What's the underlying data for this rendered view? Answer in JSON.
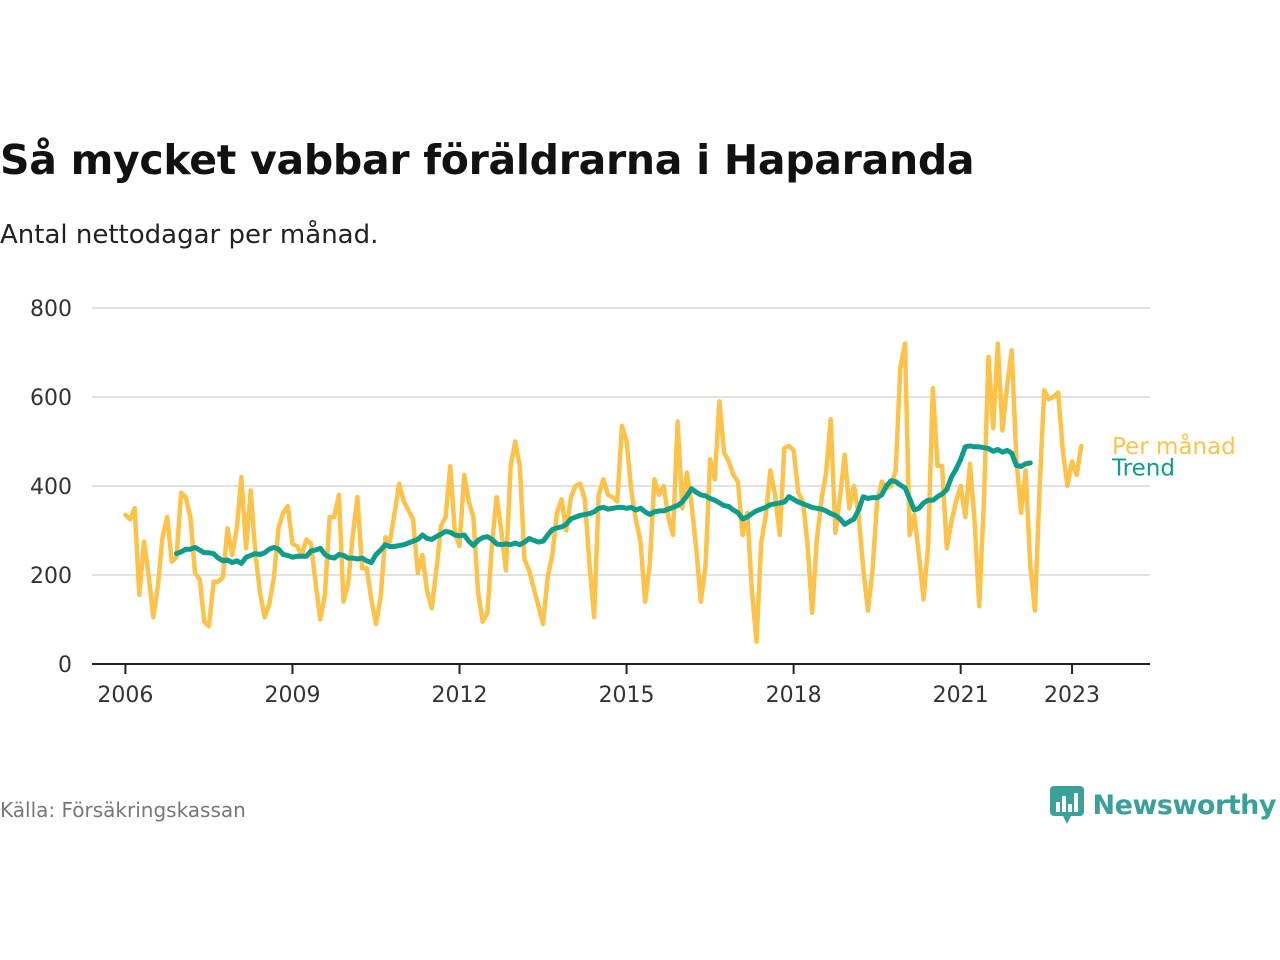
{
  "title": "Så mycket vabbar föräldrarna i Haparanda",
  "subtitle": "Antal nettodagar per månad.",
  "source": "Källa: Försäkringskassan",
  "brand": "Newsworthy",
  "colors": {
    "monthly": "#fdc24a",
    "trend": "#0f9c8a",
    "grid": "#d9d9d9",
    "brand": "#39a09a"
  },
  "chart_data": {
    "type": "line",
    "title": "Så mycket vabbar föräldrarna i Haparanda",
    "subtitle": "Antal nettodagar per månad.",
    "xlim": [
      2005.4,
      2024.4
    ],
    "ylim": [
      0,
      800
    ],
    "xticks": [
      2006,
      2009,
      2012,
      2015,
      2018,
      2021,
      2023
    ],
    "yticks": [
      0,
      200,
      400,
      600,
      800
    ],
    "grid": true,
    "legend": "inline labels at line ends",
    "series": [
      {
        "name": "Per månad",
        "color": "#fdc24a",
        "x_start": 2006.0,
        "x_step_months": 1,
        "values": [
          335,
          325,
          350,
          155,
          275,
          200,
          105,
          175,
          285,
          330,
          230,
          240,
          385,
          375,
          330,
          205,
          190,
          95,
          85,
          185,
          185,
          195,
          305,
          245,
          305,
          420,
          260,
          390,
          250,
          160,
          105,
          135,
          195,
          305,
          340,
          355,
          270,
          265,
          245,
          280,
          270,
          180,
          100,
          155,
          330,
          330,
          380,
          140,
          180,
          290,
          375,
          215,
          215,
          145,
          90,
          150,
          285,
          275,
          340,
          405,
          365,
          345,
          325,
          205,
          245,
          165,
          125,
          210,
          310,
          330,
          445,
          295,
          265,
          425,
          365,
          330,
          160,
          95,
          115,
          270,
          375,
          300,
          210,
          445,
          500,
          445,
          235,
          210,
          170,
          130,
          90,
          195,
          245,
          340,
          370,
          300,
          375,
          400,
          405,
          370,
          225,
          105,
          380,
          415,
          380,
          375,
          365,
          535,
          500,
          390,
          325,
          275,
          140,
          225,
          415,
          380,
          400,
          330,
          290,
          545,
          350,
          430,
          360,
          260,
          140,
          220,
          460,
          415,
          590,
          475,
          455,
          425,
          410,
          290,
          340,
          165,
          50,
          270,
          335,
          435,
          380,
          290,
          485,
          490,
          480,
          385,
          365,
          270,
          115,
          280,
          370,
          430,
          550,
          295,
          375,
          470,
          350,
          400,
          335,
          215,
          120,
          210,
          365,
          410,
          395,
          400,
          435,
          665,
          720,
          290,
          335,
          245,
          145,
          270,
          620,
          445,
          445,
          260,
          320,
          365,
          400,
          330,
          450,
          320,
          130,
          365,
          690,
          530,
          720,
          525,
          625,
          705,
          460,
          340,
          435,
          220,
          120,
          395,
          615,
          595,
          600,
          610,
          480,
          400,
          455,
          425,
          490
        ],
        "label_value": 490
      },
      {
        "name": "Trend",
        "color": "#0f9c8a",
        "x_start": 2006.917,
        "x_step_months": 1,
        "values": [
          248,
          252,
          258,
          258,
          262,
          256,
          250,
          250,
          248,
          238,
          232,
          234,
          228,
          232,
          226,
          240,
          244,
          248,
          246,
          250,
          258,
          262,
          258,
          246,
          244,
          240,
          242,
          242,
          242,
          254,
          256,
          260,
          246,
          240,
          238,
          246,
          244,
          238,
          238,
          236,
          238,
          232,
          228,
          246,
          256,
          268,
          264,
          264,
          266,
          268,
          272,
          276,
          280,
          290,
          282,
          280,
          286,
          292,
          298,
          296,
          290,
          288,
          290,
          276,
          266,
          278,
          284,
          286,
          280,
          270,
          268,
          270,
          268,
          272,
          268,
          274,
          282,
          278,
          274,
          276,
          290,
          302,
          306,
          308,
          314,
          326,
          330,
          334,
          336,
          338,
          342,
          350,
          352,
          348,
          350,
          352,
          352,
          350,
          352,
          346,
          350,
          342,
          336,
          342,
          344,
          344,
          348,
          352,
          356,
          364,
          378,
          394,
          386,
          380,
          378,
          372,
          368,
          362,
          356,
          354,
          346,
          340,
          326,
          330,
          338,
          344,
          348,
          352,
          358,
          360,
          362,
          364,
          376,
          370,
          364,
          360,
          356,
          352,
          350,
          348,
          344,
          338,
          334,
          326,
          314,
          320,
          326,
          346,
          376,
          372,
          374,
          374,
          380,
          400,
          412,
          410,
          402,
          396,
          372,
          346,
          350,
          362,
          368,
          368,
          376,
          382,
          392,
          420,
          438,
          460,
          488,
          490,
          488,
          488,
          486,
          484,
          478,
          482,
          476,
          480,
          474,
          446,
          444,
          450,
          452
        ],
        "label_value": 455
      }
    ]
  }
}
